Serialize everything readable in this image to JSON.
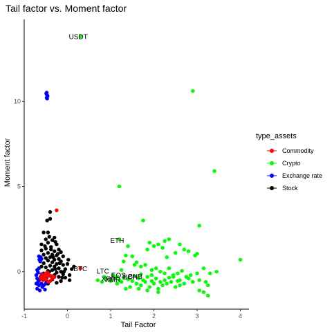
{
  "chart_data": {
    "type": "scatter",
    "title": "Tail factor vs. Moment factor",
    "xlabel": "Tail Factor",
    "ylabel": "Moment factor",
    "xlim": [
      -1,
      4.2
    ],
    "ylim": [
      -2.2,
      14.8
    ],
    "x_ticks": [
      -1,
      0,
      1,
      2,
      3,
      4
    ],
    "y_ticks": [
      0,
      5,
      10
    ],
    "grid": false,
    "legend_position": "right",
    "legend_title": "type_assets",
    "colors": {
      "Commodity": "#ff0000",
      "Crypto": "#00ff00",
      "Exchange rate": "#0000ff",
      "Stock": "#000000"
    },
    "series": [
      {
        "name": "Commodity",
        "points": [
          [
            -0.25,
            3.6
          ],
          [
            0.3,
            0.2
          ],
          [
            -0.52,
            -0.15
          ],
          [
            -0.48,
            -0.3
          ],
          [
            -0.45,
            -0.1
          ],
          [
            -0.55,
            -0.35
          ],
          [
            -0.42,
            -0.2
          ],
          [
            -0.5,
            -0.45
          ],
          [
            -0.38,
            -0.25
          ],
          [
            -0.6,
            -0.2
          ],
          [
            -0.35,
            -0.4
          ],
          [
            -0.47,
            -0.05
          ],
          [
            -0.56,
            -0.5
          ],
          [
            -0.4,
            -0.55
          ],
          [
            -0.3,
            -0.3
          ],
          [
            -0.62,
            -0.4
          ],
          [
            -0.44,
            -0.6
          ]
        ]
      },
      {
        "name": "Crypto",
        "points": [
          [
            0.3,
            13.8
          ],
          [
            2.9,
            10.6
          ],
          [
            3.4,
            5.9
          ],
          [
            1.2,
            5.0
          ],
          [
            1.75,
            3.0
          ],
          [
            3.05,
            2.7
          ],
          [
            1.2,
            1.9
          ],
          [
            2.25,
            1.8
          ],
          [
            2.35,
            1.9
          ],
          [
            2.1,
            1.6
          ],
          [
            2.2,
            1.4
          ],
          [
            1.9,
            1.7
          ],
          [
            2.6,
            1.6
          ],
          [
            1.4,
            1.5
          ],
          [
            2.0,
            1.5
          ],
          [
            2.7,
            1.3
          ],
          [
            2.8,
            1.2
          ],
          [
            1.85,
            1.3
          ],
          [
            2.5,
            1.1
          ],
          [
            1.5,
            0.9
          ],
          [
            3.0,
            1.05
          ],
          [
            2.95,
            0.95
          ],
          [
            2.3,
            0.85
          ],
          [
            1.35,
            0.95
          ],
          [
            4.0,
            0.7
          ],
          [
            1.3,
            0.6
          ],
          [
            1.55,
            0.4
          ],
          [
            1.6,
            0.55
          ],
          [
            1.7,
            0.3
          ],
          [
            1.8,
            0.4
          ],
          [
            1.95,
            0.1
          ],
          [
            2.05,
            0.2
          ],
          [
            2.15,
            0.0
          ],
          [
            2.25,
            -0.1
          ],
          [
            2.35,
            0.2
          ],
          [
            2.45,
            -0.2
          ],
          [
            2.55,
            -0.1
          ],
          [
            2.65,
            0.05
          ],
          [
            2.75,
            -0.3
          ],
          [
            2.85,
            -0.2
          ],
          [
            3.0,
            -0.1
          ],
          [
            3.15,
            0.2
          ],
          [
            3.3,
            -0.1
          ],
          [
            3.45,
            0.0
          ],
          [
            1.05,
            -0.2
          ],
          [
            1.1,
            -0.4
          ],
          [
            1.15,
            -0.3
          ],
          [
            1.2,
            -0.5
          ],
          [
            1.25,
            -0.6
          ],
          [
            1.3,
            -0.35
          ],
          [
            1.4,
            -0.45
          ],
          [
            1.5,
            -0.55
          ],
          [
            1.55,
            -0.25
          ],
          [
            1.6,
            -0.7
          ],
          [
            1.65,
            -0.4
          ],
          [
            1.7,
            -0.8
          ],
          [
            1.75,
            -0.5
          ],
          [
            1.8,
            -0.6
          ],
          [
            1.85,
            -0.3
          ],
          [
            1.9,
            -0.9
          ],
          [
            1.95,
            -0.55
          ],
          [
            2.0,
            -0.7
          ],
          [
            2.05,
            -0.4
          ],
          [
            2.1,
            -1.0
          ],
          [
            2.15,
            -0.6
          ],
          [
            2.2,
            -0.8
          ],
          [
            2.25,
            -0.5
          ],
          [
            2.3,
            -0.7
          ],
          [
            2.4,
            -0.6
          ],
          [
            2.5,
            -0.9
          ],
          [
            2.6,
            -0.5
          ],
          [
            2.7,
            -0.7
          ],
          [
            2.8,
            -0.4
          ],
          [
            2.9,
            -0.6
          ],
          [
            3.05,
            -0.5
          ],
          [
            3.2,
            -0.6
          ],
          [
            3.25,
            -0.8
          ],
          [
            3.05,
            -1.1
          ],
          [
            3.15,
            -1.2
          ],
          [
            3.25,
            -1.4
          ],
          [
            1.45,
            -0.9
          ],
          [
            1.65,
            -1.0
          ],
          [
            1.85,
            -1.1
          ],
          [
            2.1,
            -1.2
          ],
          [
            1.35,
            -1.0
          ],
          [
            2.45,
            -0.3
          ],
          [
            2.6,
            -0.8
          ],
          [
            1.95,
            -0.2
          ],
          [
            0.7,
            -0.5
          ],
          [
            0.8,
            -0.6
          ],
          [
            0.9,
            -0.45
          ],
          [
            1.0,
            -0.55
          ],
          [
            0.85,
            -0.3
          ],
          [
            1.15,
            -0.7
          ],
          [
            2.55,
            -0.55
          ],
          [
            2.35,
            -0.35
          ],
          [
            1.7,
            -0.15
          ],
          [
            1.25,
            0.1
          ]
        ]
      },
      {
        "name": "Exchange rate",
        "points": [
          [
            -0.48,
            10.2
          ],
          [
            -0.47,
            10.35
          ],
          [
            -0.49,
            10.45
          ],
          [
            -0.46,
            10.3
          ],
          [
            -0.48,
            10.5
          ],
          [
            -0.47,
            10.15
          ],
          [
            -0.62,
            0.85
          ],
          [
            -0.65,
            0.7
          ],
          [
            -0.6,
            0.75
          ],
          [
            -0.66,
            0.9
          ],
          [
            -0.63,
            0.6
          ],
          [
            -0.7,
            -0.4
          ],
          [
            -0.68,
            -0.6
          ],
          [
            -0.72,
            -0.2
          ],
          [
            -0.66,
            -0.8
          ],
          [
            -0.7,
            -1.0
          ],
          [
            -0.65,
            -0.5
          ],
          [
            -0.62,
            -0.3
          ],
          [
            -0.6,
            -0.7
          ],
          [
            -0.58,
            -0.9
          ],
          [
            -0.55,
            -0.8
          ],
          [
            -0.52,
            -1.05
          ],
          [
            -0.5,
            -0.7
          ],
          [
            -0.7,
            0.1
          ],
          [
            -0.68,
            -0.05
          ],
          [
            -0.66,
            0.2
          ],
          [
            -0.72,
            -0.7
          ],
          [
            -0.64,
            -1.1
          ],
          [
            -0.6,
            -0.15
          ]
        ]
      },
      {
        "name": "Stock",
        "points": [
          [
            -0.4,
            3.5
          ],
          [
            -0.4,
            3.1
          ],
          [
            -0.47,
            3.0
          ],
          [
            -0.55,
            2.3
          ],
          [
            -0.45,
            2.3
          ],
          [
            -0.3,
            2.0
          ],
          [
            -0.5,
            1.9
          ],
          [
            -0.35,
            1.85
          ],
          [
            -0.45,
            1.7
          ],
          [
            -0.6,
            1.6
          ],
          [
            -0.25,
            1.6
          ],
          [
            -0.38,
            1.45
          ],
          [
            -0.5,
            1.35
          ],
          [
            -0.2,
            1.3
          ],
          [
            -0.6,
            1.25
          ],
          [
            -0.3,
            1.2
          ],
          [
            -0.15,
            1.15
          ],
          [
            -0.45,
            1.1
          ],
          [
            -0.35,
            1.0
          ],
          [
            -0.55,
            1.0
          ],
          [
            -0.25,
            0.95
          ],
          [
            -0.1,
            0.9
          ],
          [
            -0.4,
            0.85
          ],
          [
            -0.5,
            0.8
          ],
          [
            -0.2,
            0.75
          ],
          [
            -0.3,
            0.7
          ],
          [
            -0.45,
            0.65
          ],
          [
            -0.15,
            0.6
          ],
          [
            -0.35,
            0.55
          ],
          [
            -0.55,
            0.5
          ],
          [
            -0.25,
            0.45
          ],
          [
            -0.1,
            0.4
          ],
          [
            -0.4,
            0.35
          ],
          [
            -0.3,
            0.3
          ],
          [
            -0.5,
            0.25
          ],
          [
            -0.2,
            0.2
          ],
          [
            -0.05,
            0.15
          ],
          [
            -0.35,
            0.1
          ],
          [
            -0.45,
            0.05
          ],
          [
            -0.15,
            0.0
          ],
          [
            -0.25,
            -0.05
          ],
          [
            -0.55,
            -0.1
          ],
          [
            -0.1,
            -0.15
          ],
          [
            -0.3,
            -0.2
          ],
          [
            -0.4,
            -0.25
          ],
          [
            -0.2,
            -0.3
          ],
          [
            -0.05,
            -0.35
          ],
          [
            -0.35,
            -0.45
          ],
          [
            -0.5,
            -0.5
          ],
          [
            -0.15,
            -0.55
          ],
          [
            -0.25,
            -0.65
          ],
          [
            -0.45,
            -0.7
          ],
          [
            0.05,
            -0.2
          ],
          [
            0.1,
            0.15
          ],
          [
            0.05,
            -0.5
          ],
          [
            0.15,
            0.3
          ],
          [
            -0.6,
            0.3
          ],
          [
            -0.58,
            -0.2
          ],
          [
            -0.28,
            1.75
          ],
          [
            -0.42,
            2.05
          ],
          [
            -0.33,
            0.85
          ],
          [
            -0.18,
            0.5
          ],
          [
            -0.12,
            -0.35
          ],
          [
            -0.48,
            -0.35
          ],
          [
            -0.22,
            1.05
          ],
          [
            0.0,
            0.45
          ],
          [
            -0.08,
            0.0
          ],
          [
            -0.38,
            1.3
          ],
          [
            -0.52,
            1.5
          ],
          [
            -0.28,
            0.15
          ],
          [
            0.02,
            0.7
          ],
          [
            -0.42,
            0.0
          ]
        ]
      }
    ],
    "annotations": [
      {
        "text": "USDT",
        "x": 0.25,
        "y": 13.8
      },
      {
        "text": "ETH",
        "x": 1.15,
        "y": 1.85
      },
      {
        "text": "BTC",
        "x": 0.3,
        "y": 0.2
      },
      {
        "text": "LTC",
        "x": 0.82,
        "y": 0.05
      },
      {
        "text": "EOS",
        "x": 1.18,
        "y": -0.2
      },
      {
        "text": "BCH",
        "x": 1.45,
        "y": -0.3
      },
      {
        "text": "BNB",
        "x": 1.57,
        "y": -0.25
      },
      {
        "text": "XRP",
        "x": 0.95,
        "y": -0.4
      },
      {
        "text": "XMR",
        "x": 1.05,
        "y": -0.45
      }
    ]
  }
}
